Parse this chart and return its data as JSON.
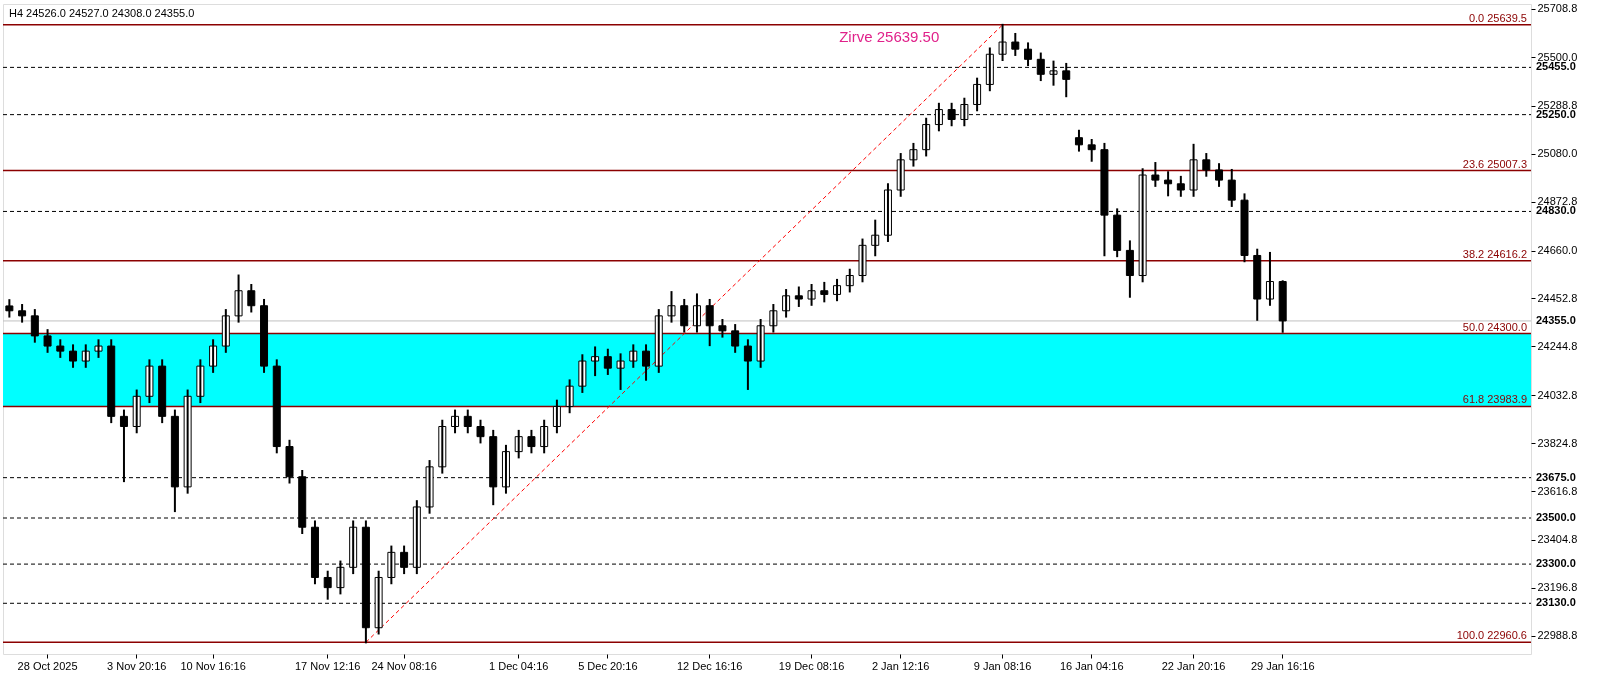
{
  "chart_data": {
    "type": "candlestick",
    "title": "H4  24526.0 24527.0 24308.0 24355.0",
    "color": "#000000",
    "categories": [
      null,
      null,
      null,
      "28 Oct 2025",
      null,
      null,
      null,
      null,
      null,
      null,
      "3 Nov 20:16",
      null,
      null,
      null,
      null,
      null,
      "10 Nov 16:16",
      null,
      null,
      null,
      null,
      null,
      null,
      null,
      null,
      "17 Nov 12:16",
      null,
      null,
      null,
      null,
      null,
      "24 Nov 08:16",
      null,
      null,
      null,
      null,
      null,
      null,
      null,
      null,
      "1 Dec 04:16",
      null,
      null,
      null,
      null,
      null,
      null,
      "5 Dec 20:16",
      null,
      null,
      null,
      null,
      null,
      null,
      null,
      "12 Dec 16:16",
      null,
      null,
      null,
      null,
      null,
      null,
      null,
      "19 Dec 08:16",
      null,
      null,
      null,
      null,
      null,
      null,
      "2 Jan 12:16",
      null,
      null,
      null,
      null,
      null,
      null,
      null,
      "9 Jan 08:16",
      null,
      null,
      null,
      null,
      null,
      null,
      "16 Jan 04:16",
      null,
      null,
      null,
      null,
      null,
      null,
      null,
      "22 Jan 20:16",
      null,
      null,
      null,
      null,
      null,
      null,
      "29 Jan 16:16",
      null,
      null,
      null,
      null,
      null,
      null,
      null,
      null,
      null,
      null,
      null,
      null,
      null,
      null,
      null,
      null,
      null,
      null,
      null
    ],
    "ohlc": [
      [
        24420,
        24445,
        24374,
        24399
      ],
      [
        24399,
        24424,
        24352,
        24377
      ],
      [
        24377,
        24402,
        24265,
        24290
      ],
      [
        24290,
        24315,
        24221,
        24246
      ],
      [
        24246,
        24271,
        24199,
        24224
      ],
      [
        24224,
        24249,
        24156,
        24181
      ],
      [
        24181,
        24249,
        24156,
        24224
      ],
      [
        24224,
        24271,
        24199,
        24246
      ],
      [
        24246,
        24271,
        23916,
        23941
      ],
      [
        23941,
        23966,
        23660,
        23897
      ],
      [
        23897,
        24053,
        23872,
        24028
      ],
      [
        24028,
        24184,
        24003,
        24159
      ],
      [
        24159,
        24184,
        23916,
        23941
      ],
      [
        23941,
        23966,
        23530,
        23635
      ],
      [
        23635,
        24053,
        23610,
        24028
      ],
      [
        24028,
        24184,
        24003,
        24159
      ],
      [
        24159,
        24271,
        24134,
        24246
      ],
      [
        24246,
        24402,
        24221,
        24377
      ],
      [
        24377,
        24552,
        24352,
        24486
      ],
      [
        24486,
        24511,
        24396,
        24421
      ],
      [
        24421,
        24446,
        24134,
        24159
      ],
      [
        24159,
        24184,
        23785,
        23810
      ],
      [
        23810,
        23835,
        23654,
        23679
      ],
      [
        23679,
        23704,
        23435,
        23460
      ],
      [
        23460,
        23485,
        23217,
        23242
      ],
      [
        23242,
        23267,
        23150,
        23198
      ],
      [
        23198,
        23311,
        23173,
        23286
      ],
      [
        23286,
        23485,
        23261,
        23460
      ],
      [
        23460,
        23485,
        22960.6,
        23024
      ],
      [
        23024,
        23267,
        22999,
        23242
      ],
      [
        23242,
        23376,
        23217,
        23351
      ],
      [
        23351,
        23376,
        23261,
        23286
      ],
      [
        23286,
        23573,
        23261,
        23548
      ],
      [
        23548,
        23747,
        23523,
        23722
      ],
      [
        23722,
        23922,
        23697,
        23897
      ],
      [
        23897,
        23966,
        23872,
        23941
      ],
      [
        23941,
        23966,
        23872,
        23897
      ],
      [
        23897,
        23922,
        23828,
        23853
      ],
      [
        23853,
        23878,
        23560,
        23635
      ],
      [
        23635,
        23813,
        23610,
        23788
      ],
      [
        23788,
        23878,
        23763,
        23853
      ],
      [
        23853,
        23878,
        23785,
        23810
      ],
      [
        23810,
        23922,
        23785,
        23897
      ],
      [
        23897,
        24009,
        23872,
        23984
      ],
      [
        23984,
        24097,
        23959,
        24072
      ],
      [
        24072,
        24206,
        24047,
        24181
      ],
      [
        24181,
        24240,
        24120,
        24200
      ],
      [
        24200,
        24230,
        24125,
        24150
      ],
      [
        24150,
        24210,
        24060,
        24181
      ],
      [
        24181,
        24249,
        24156,
        24224
      ],
      [
        24224,
        24249,
        24100,
        24159
      ],
      [
        24159,
        24402,
        24134,
        24377
      ],
      [
        24377,
        24480,
        24352,
        24421
      ],
      [
        24421,
        24446,
        24309,
        24334
      ],
      [
        24334,
        24470,
        24309,
        24421
      ],
      [
        24421,
        24446,
        24250,
        24334
      ],
      [
        24334,
        24359,
        24287,
        24312
      ],
      [
        24312,
        24337,
        24221,
        24246
      ],
      [
        24246,
        24271,
        24060,
        24181
      ],
      [
        24181,
        24359,
        24156,
        24334
      ],
      [
        24334,
        24424,
        24309,
        24399
      ],
      [
        24399,
        24489,
        24374,
        24464
      ],
      [
        24464,
        24500,
        24420,
        24450
      ],
      [
        24450,
        24511,
        24425,
        24486
      ],
      [
        24486,
        24520,
        24440,
        24470
      ],
      [
        24470,
        24533,
        24445,
        24508
      ],
      [
        24508,
        24577,
        24483,
        24552
      ],
      [
        24552,
        24708,
        24527,
        24683
      ],
      [
        24683,
        24790,
        24640,
        24727
      ],
      [
        24727,
        24948,
        24702,
        24923
      ],
      [
        24923,
        25079,
        24898,
        25054
      ],
      [
        25054,
        25123,
        25029,
        25098
      ],
      [
        25098,
        25232,
        25073,
        25207
      ],
      [
        25207,
        25297,
        25182,
        25272
      ],
      [
        25272,
        25297,
        25204,
        25229
      ],
      [
        25229,
        25319,
        25204,
        25294
      ],
      [
        25294,
        25406,
        25269,
        25381
      ],
      [
        25381,
        25537,
        25356,
        25512
      ],
      [
        25512,
        25639.5,
        25487,
        25565
      ],
      [
        25565,
        25600,
        25509,
        25534
      ],
      [
        25534,
        25559,
        25465,
        25490
      ],
      [
        25490,
        25515,
        25400,
        25425
      ],
      [
        25425,
        25480,
        25380,
        25440
      ],
      [
        25440,
        25470,
        25330,
        25403
      ],
      [
        25150,
        25180,
        25094,
        25119
      ],
      [
        25119,
        25140,
        25050,
        25098
      ],
      [
        25098,
        25123,
        24640,
        24814
      ],
      [
        24814,
        24839,
        24636,
        24661
      ],
      [
        24661,
        24700,
        24460,
        24552
      ],
      [
        24552,
        25013,
        24527,
        24988
      ],
      [
        24988,
        25040,
        24941,
        24966
      ],
      [
        24966,
        25000,
        24900,
        24950
      ],
      [
        24950,
        24980,
        24898,
        24923
      ],
      [
        24923,
        25119,
        24898,
        25054
      ],
      [
        25054,
        25079,
        24985,
        25010
      ],
      [
        25010,
        25035,
        24941,
        24966
      ],
      [
        24966,
        25010,
        24854,
        24879
      ],
      [
        24879,
        24904,
        24614,
        24639
      ],
      [
        24639,
        24664,
        24360,
        24450
      ],
      [
        24450,
        24650,
        24425,
        24526
      ],
      [
        24526,
        24527,
        24308,
        24355
      ],
      null,
      null,
      null,
      null,
      null,
      null,
      null,
      null,
      null,
      null,
      null,
      null,
      null,
      null,
      null,
      null,
      null,
      null,
      null
    ],
    "series": [
      {
        "type": "line",
        "values": [
          null,
          null,
          null,
          null,
          null,
          null,
          null,
          null,
          null,
          null,
          null,
          null,
          null,
          null,
          null,
          null,
          null,
          null,
          null,
          null,
          null,
          null,
          null,
          null,
          null,
          null,
          null,
          null,
          22960.6,
          null,
          null,
          null,
          null,
          null,
          null,
          null,
          null,
          null,
          null,
          null,
          null,
          null,
          null,
          null,
          null,
          null,
          null,
          null,
          null,
          null,
          null,
          null,
          null,
          null,
          null,
          null,
          null,
          null,
          null,
          null,
          null,
          null,
          null,
          null,
          null,
          null,
          null,
          null,
          null,
          null,
          null,
          null,
          null,
          null,
          null,
          null,
          null,
          null,
          25639.5,
          null,
          null,
          null,
          null,
          null,
          null,
          null,
          null,
          null,
          null,
          null,
          null,
          null,
          null,
          null,
          null,
          null,
          null,
          null,
          null,
          null,
          null,
          null,
          null,
          null,
          null,
          null,
          null,
          null,
          null,
          null,
          null,
          null,
          null,
          null,
          null,
          null,
          null,
          null,
          null,
          null
        ],
        "color": "#ff0000",
        "line_style": "dashed"
      }
    ],
    "ylim": [
      22910,
      25730
    ],
    "yticks": [
      {
        "value": 22988.8,
        "label": "22988.8"
      },
      {
        "value": 23196.8,
        "label": "23196.8"
      },
      {
        "value": 23404.8,
        "label": "23404.8"
      },
      {
        "value": 23616.8,
        "label": "23616.8"
      },
      {
        "value": 23824.8,
        "label": "23824.8"
      },
      {
        "value": 24032.8,
        "label": "24032.8"
      },
      {
        "value": 24244.8,
        "label": "24244.8"
      },
      {
        "value": 24452.8,
        "label": "24452.8"
      },
      {
        "value": 24660,
        "label": "24660.0"
      },
      {
        "value": 24872.8,
        "label": "24872.8"
      },
      {
        "value": 25080,
        "label": "25080.0"
      },
      {
        "value": 25288.8,
        "label": "25288.8"
      },
      {
        "value": 25500,
        "label": "25500.0"
      },
      {
        "value": 25708.8,
        "label": "25708.8"
      }
    ],
    "bands": [
      {
        "axis": "y",
        "from": 23983.9,
        "to": 24300,
        "color": "#00ffff"
      }
    ],
    "ref_lines": [
      {
        "axis": "y",
        "value": 25639.5,
        "label": "0.0 25639.5",
        "color": "#8b0000",
        "line_style": "solid"
      },
      {
        "axis": "y",
        "value": 25007.3,
        "label": "23.6 25007.3",
        "color": "#8b0000",
        "line_style": "solid"
      },
      {
        "axis": "y",
        "value": 24616.2,
        "label": "38.2 24616.2",
        "color": "#8b0000",
        "line_style": "solid"
      },
      {
        "axis": "y",
        "value": 24300,
        "label": "50.0 24300.0",
        "color": "#8b0000",
        "line_style": "solid"
      },
      {
        "axis": "y",
        "value": 23983.9,
        "label": "61.8 23983.9",
        "color": "#8b0000",
        "line_style": "solid"
      },
      {
        "axis": "y",
        "value": 22960.6,
        "label": "100.0 22960.6",
        "color": "#8b0000",
        "line_style": "solid"
      },
      {
        "axis": "y",
        "value": 25455,
        "label": "25455.0",
        "color": "#000000",
        "line_style": "dashed"
      },
      {
        "axis": "y",
        "value": 25250,
        "label": "25250.0",
        "color": "#000000",
        "line_style": "dashed"
      },
      {
        "axis": "y",
        "value": 24830,
        "label": "24830.0",
        "color": "#000000",
        "line_style": "dashed"
      },
      {
        "axis": "y",
        "value": 24355,
        "label": "24355.0",
        "color": "#c0c0c0"
      },
      {
        "axis": "y",
        "value": 23675,
        "label": "23675.0",
        "color": "#000000",
        "line_style": "dashed"
      },
      {
        "axis": "y",
        "value": 23500,
        "label": "23500.0",
        "color": "#000000",
        "line_style": "dashed"
      },
      {
        "axis": "y",
        "value": 23300,
        "label": "23300.0",
        "color": "#000000",
        "line_style": "dashed"
      },
      {
        "axis": "y",
        "value": 23130,
        "label": "23130.0",
        "color": "#000000",
        "line_style": "dashed"
      }
    ],
    "annotations": [
      "Zirve 25639.50"
    ]
  }
}
